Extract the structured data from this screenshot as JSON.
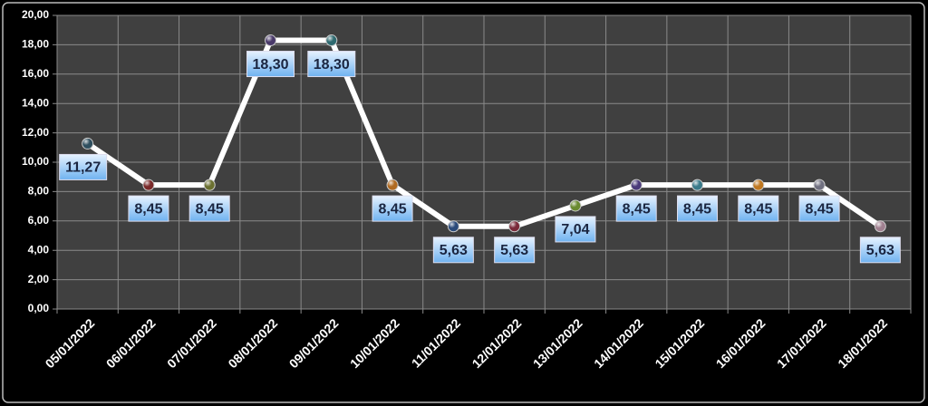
{
  "chart_data": {
    "type": "line",
    "categories": [
      "05/01/2022",
      "06/01/2022",
      "07/01/2022",
      "08/01/2022",
      "09/01/2022",
      "10/01/2022",
      "11/01/2022",
      "12/01/2022",
      "13/01/2022",
      "14/01/2022",
      "15/01/2022",
      "16/01/2022",
      "17/01/2022",
      "18/01/2022"
    ],
    "values": [
      11.27,
      8.45,
      8.45,
      18.3,
      18.3,
      8.45,
      5.63,
      5.63,
      7.04,
      8.45,
      8.45,
      8.45,
      8.45,
      5.63
    ],
    "value_labels": [
      "11,27",
      "8,45",
      "8,45",
      "18,30",
      "18,30",
      "8,45",
      "5,63",
      "5,63",
      "7,04",
      "8,45",
      "8,45",
      "8,45",
      "8,45",
      "5,63"
    ],
    "color": "#ffffff",
    "marker_colors": [
      "#2f4f5f",
      "#7a2a2a",
      "#6b7030",
      "#4a3a6a",
      "#2f6a70",
      "#b06a20",
      "#2a4a7a",
      "#7a2a3a",
      "#6a8a30",
      "#4a3a7a",
      "#3a7a8a",
      "#c07820",
      "#707080",
      "#a08090"
    ],
    "ylim": [
      0,
      20
    ],
    "yticks": [
      {
        "value": 0,
        "label": "0,00"
      },
      {
        "value": 2,
        "label": "2,00"
      },
      {
        "value": 4,
        "label": "4,00"
      },
      {
        "value": 6,
        "label": "6,00"
      },
      {
        "value": 8,
        "label": "8,00"
      },
      {
        "value": 10,
        "label": "10,00"
      },
      {
        "value": 12,
        "label": "12,00"
      },
      {
        "value": 14,
        "label": "14,00"
      },
      {
        "value": 16,
        "label": "16,00"
      },
      {
        "value": 18,
        "label": "18,00"
      },
      {
        "value": 20,
        "label": "20,00"
      }
    ],
    "grid": true
  }
}
